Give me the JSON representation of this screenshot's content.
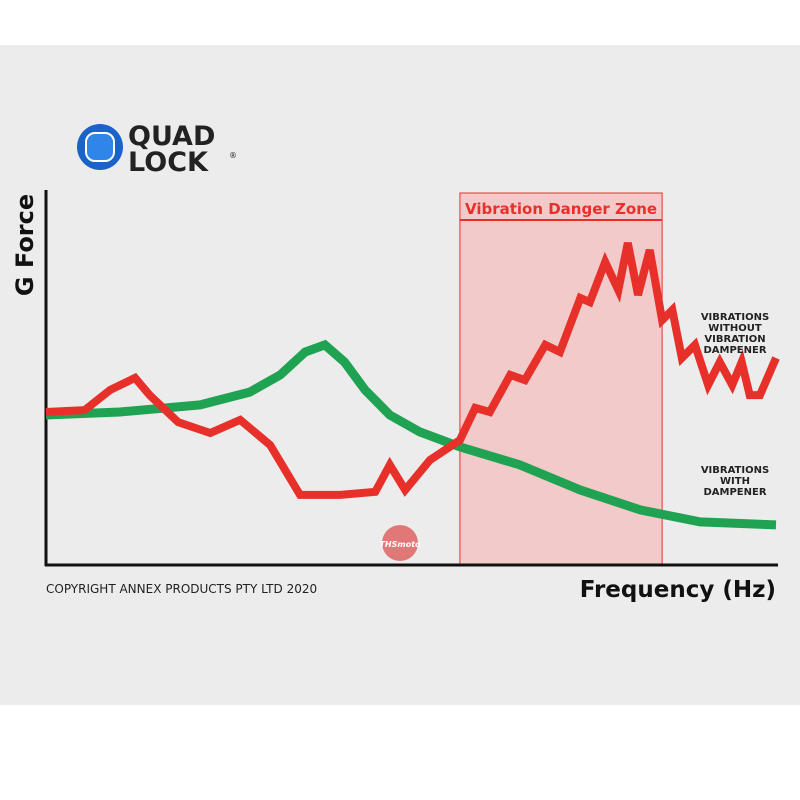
{
  "brand": {
    "name": "QUAD",
    "name2": "LOCK",
    "mark": "®"
  },
  "copyright": "COPYRIGHT ANNEX PRODUCTS PTY LTD 2020",
  "watermark": "THSmoto",
  "chart_data": {
    "type": "line",
    "ylabel": "G Force",
    "xlabel": "Frequency (Hz)",
    "xlim": [
      0,
      100
    ],
    "ylim": [
      0,
      100
    ],
    "zone": {
      "label": "Vibration Danger Zone",
      "range": [
        56.7,
        84.4
      ]
    },
    "series": [
      {
        "name": "VIBRATIONS WITHOUT VIBRATION DAMPENER",
        "color": "#e8302a",
        "x": [
          0,
          5.3,
          8.8,
          12.2,
          14.2,
          18.1,
          22.5,
          26.6,
          30.7,
          34.8,
          40.3,
          45.1,
          47.1,
          49.2,
          52.6,
          56.7,
          58.8,
          60.8,
          63.6,
          65.6,
          68.4,
          70.4,
          73.2,
          74.5,
          76.6,
          78.4,
          79.7,
          81.1,
          82.7,
          84.4,
          85.8,
          87.1,
          88.9,
          90.7,
          92.3,
          94.0,
          95.3,
          96.4,
          97.8,
          100
        ],
        "values": [
          40.8,
          41.3,
          46.7,
          49.9,
          45.3,
          38.1,
          35.2,
          38.7,
          32.0,
          18.7,
          18.7,
          19.5,
          26.7,
          20.0,
          28.0,
          33.3,
          41.9,
          40.8,
          50.7,
          49.3,
          58.7,
          56.8,
          71.2,
          70.1,
          80.8,
          73.3,
          85.9,
          72.0,
          84.0,
          65.3,
          68.0,
          55.2,
          58.7,
          48.0,
          54.1,
          48.0,
          54.1,
          45.3,
          45.3,
          55.2
        ]
      },
      {
        "name": "VIBRATIONS WITH DAMPENER",
        "color": "#1fa352",
        "x": [
          0,
          10.1,
          21.1,
          27.9,
          32.1,
          35.5,
          38.2,
          40.9,
          43.7,
          47.1,
          51.2,
          56.7,
          64.9,
          73.2,
          81.4,
          89.6,
          100
        ],
        "values": [
          40,
          40.8,
          42.7,
          46.1,
          50.7,
          56.8,
          58.7,
          54.1,
          46.7,
          40,
          35.5,
          31.5,
          26.7,
          20,
          14.7,
          11.5,
          10.7
        ]
      }
    ]
  }
}
